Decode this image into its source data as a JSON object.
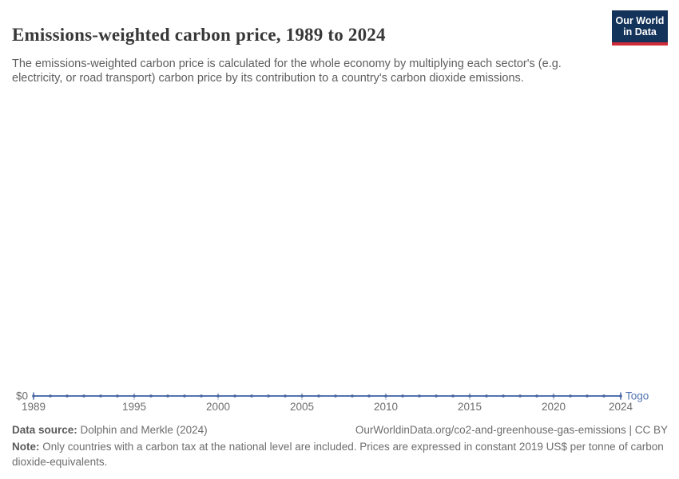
{
  "header": {
    "title": "Emissions-weighted carbon price, 1989 to 2024",
    "subtitle": "The emissions-weighted carbon price is calculated for the whole economy by multiplying each sector's (e.g. electricity, or road transport) carbon price by its contribution to a country's carbon dioxide emissions.",
    "logo": {
      "line1": "Our World",
      "line2": "in Data"
    }
  },
  "chart_data": {
    "type": "line",
    "title": "Emissions-weighted carbon price, 1989 to 2024",
    "x": [
      1989,
      1990,
      1991,
      1992,
      1993,
      1994,
      1995,
      1996,
      1997,
      1998,
      1999,
      2000,
      2001,
      2002,
      2003,
      2004,
      2005,
      2006,
      2007,
      2008,
      2009,
      2010,
      2011,
      2012,
      2013,
      2014,
      2015,
      2016,
      2017,
      2018,
      2019,
      2020,
      2021,
      2022,
      2023,
      2024
    ],
    "series": [
      {
        "name": "Togo",
        "color": "#5274b0",
        "marker_color": "#46659e",
        "values": [
          0,
          0,
          0,
          0,
          0,
          0,
          0,
          0,
          0,
          0,
          0,
          0,
          0,
          0,
          0,
          0,
          0,
          0,
          0,
          0,
          0,
          0,
          0,
          0,
          0,
          0,
          0,
          0,
          0,
          0,
          0,
          0,
          0,
          0,
          0,
          0
        ]
      }
    ],
    "x_tick_labels": [
      1989,
      1995,
      2000,
      2005,
      2010,
      2015,
      2020,
      2024
    ],
    "y_tick_labels": [
      "$0"
    ],
    "xlim": [
      1989,
      2024
    ],
    "ylim": [
      0,
      0
    ],
    "grid": false,
    "legend": "end-of-line-label"
  },
  "footer": {
    "datasource_label": "Data source:",
    "datasource_text": "Dolphin and Merkle (2024)",
    "link_text": "OurWorldinData.org/co2-and-greenhouse-gas-emissions | CC BY",
    "note_label": "Note:",
    "note_text": "Only countries with a carbon tax at the national level are included. Prices are expressed in constant 2019 US$ per tonne of carbon dioxide-equivalents."
  },
  "colors": {
    "logo_navy": "#14335a",
    "logo_red": "#cf2a3a",
    "axis_text": "#6d6d6d",
    "tick": "#9fb0ca",
    "title_text": "#383838"
  }
}
